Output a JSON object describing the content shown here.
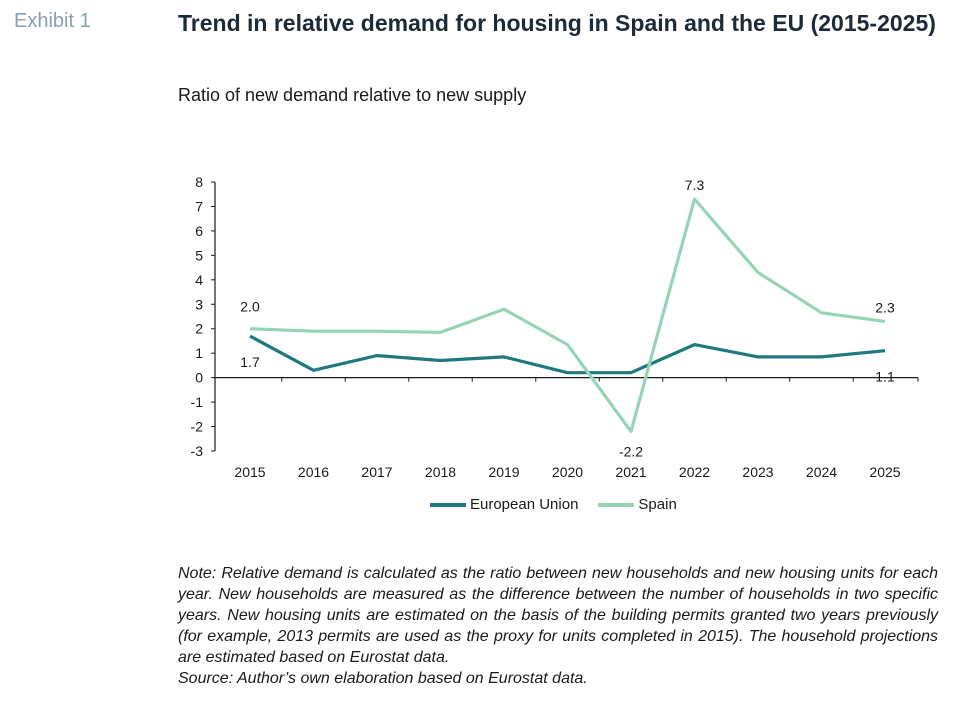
{
  "header": {
    "exhibit": "Exhibit 1",
    "title": "Trend in relative demand for housing in Spain and the EU (2015-2025)",
    "subtitle": "Ratio of new demand relative to new supply"
  },
  "colors": {
    "eu": "#1f7a80",
    "spain": "#96d4b6",
    "axis": "#1a1a1a"
  },
  "chart_data": {
    "type": "line",
    "x": [
      "2015",
      "2016",
      "2017",
      "2018",
      "2019",
      "2020",
      "2021",
      "2022",
      "2023",
      "2024",
      "2025"
    ],
    "series": [
      {
        "name": "European Union",
        "values": [
          1.7,
          0.3,
          0.9,
          0.7,
          0.85,
          0.2,
          0.2,
          1.35,
          0.85,
          0.85,
          1.1
        ]
      },
      {
        "name": "Spain",
        "values": [
          2.0,
          1.9,
          1.9,
          1.85,
          2.8,
          1.35,
          -2.2,
          7.3,
          4.3,
          2.65,
          2.3
        ]
      }
    ],
    "yticks": [
      "8",
      "7",
      "6",
      "5",
      "4",
      "3",
      "2",
      "1",
      "0",
      "-1",
      "-2",
      "-3"
    ],
    "ylim": [
      -3,
      8
    ],
    "data_labels": [
      {
        "text": "2.0",
        "series": 1,
        "index": 0
      },
      {
        "text": "1.7",
        "series": 0,
        "index": 0
      },
      {
        "text": "-2.2",
        "series": 1,
        "index": 6
      },
      {
        "text": "7.3",
        "series": 1,
        "index": 7
      },
      {
        "text": "2.3",
        "series": 1,
        "index": 10
      },
      {
        "text": "1.1",
        "series": 0,
        "index": 10
      }
    ],
    "legend_position": "bottom",
    "grid": false
  },
  "legend": {
    "eu": "European Union",
    "spain": "Spain"
  },
  "note": {
    "text": "Note: Relative demand is calculated as the ratio between new households and new housing units for each year. New households are measured as the difference between the number of households in two specific years. New housing units are estimated on the basis of the building permits granted two years previously (for example, 2013 permits are used as the proxy for units completed in 2015). The household projections are estimated based on Eurostat data.",
    "source": "Source: Author’s own elaboration based on Eurostat data."
  }
}
